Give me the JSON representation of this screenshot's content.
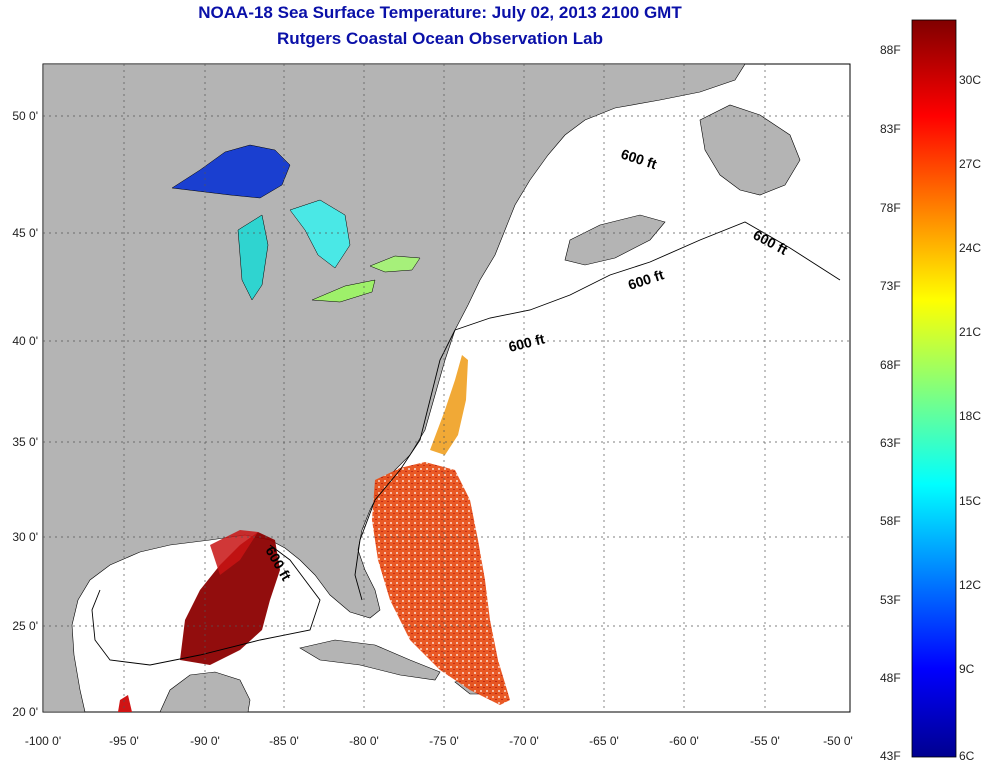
{
  "title": "NOAA-18 Sea Surface Temperature:  July 02, 2013 2100 GMT",
  "subtitle": "Rutgers Coastal Ocean Observation Lab",
  "map": {
    "x_ticks": [
      "-100 0'",
      "-95 0'",
      "-90 0'",
      "-85 0'",
      "-80 0'",
      "-75 0'",
      "-70 0'",
      "-65 0'",
      "-60 0'",
      "-55 0'",
      "-50 0'"
    ],
    "y_ticks": [
      "50 0'",
      "45 0'",
      "40 0'",
      "35 0'",
      "30 0'",
      "25 0'",
      "20 0'"
    ],
    "lon_range": [
      -100,
      -50
    ],
    "lat_range": [
      20,
      52.5
    ],
    "contour_label": "600 ft",
    "grid": true,
    "colors": {
      "land": "#b4b4b4",
      "ocean": "#ffffff",
      "title": "#0a10a8"
    }
  },
  "colorbar": {
    "f_labels": [
      "88F",
      "83F",
      "78F",
      "73F",
      "68F",
      "63F",
      "58F",
      "53F",
      "48F",
      "43F"
    ],
    "c_labels": [
      "30C",
      "27C",
      "24C",
      "21C",
      "18C",
      "15C",
      "12C",
      "9C",
      "6C"
    ],
    "range_c": [
      6,
      31.5
    ],
    "stops": [
      "#00008f",
      "#0000ff",
      "#00ffff",
      "#ffff00",
      "#ff0000",
      "#800000"
    ]
  }
}
